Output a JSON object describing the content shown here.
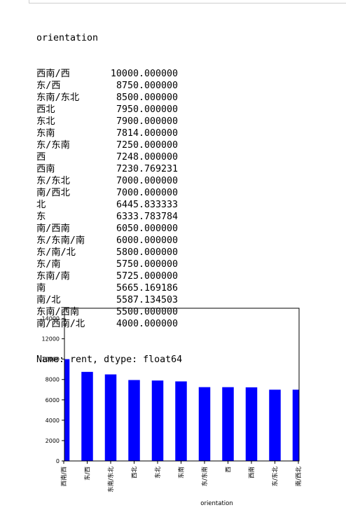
{
  "output": {
    "header": "orientation",
    "rows": [
      {
        "key": "西南/西",
        "value": "10000.000000"
      },
      {
        "key": "东/西",
        "value": "8750.000000"
      },
      {
        "key": "东南/东北",
        "value": "8500.000000"
      },
      {
        "key": "西北",
        "value": "7950.000000"
      },
      {
        "key": "东北",
        "value": "7900.000000"
      },
      {
        "key": "东南",
        "value": "7814.000000"
      },
      {
        "key": "东/东南",
        "value": "7250.000000"
      },
      {
        "key": "西",
        "value": "7248.000000"
      },
      {
        "key": "西南",
        "value": "7230.769231"
      },
      {
        "key": "东/东北",
        "value": "7000.000000"
      },
      {
        "key": "南/西北",
        "value": "7000.000000"
      },
      {
        "key": "北",
        "value": "6445.833333"
      },
      {
        "key": "东",
        "value": "6333.783784"
      },
      {
        "key": "南/西南",
        "value": "6050.000000"
      },
      {
        "key": "东/东南/南",
        "value": "6000.000000"
      },
      {
        "key": "东/南/北",
        "value": "5800.000000"
      },
      {
        "key": "东/南",
        "value": "5750.000000"
      },
      {
        "key": "东南/南",
        "value": "5725.000000"
      },
      {
        "key": "南",
        "value": "5665.169186"
      },
      {
        "key": "南/北",
        "value": "5587.134503"
      },
      {
        "key": "东南/西南",
        "value": "5500.000000"
      },
      {
        "key": "南/西南/北",
        "value": "4000.000000"
      }
    ],
    "footer": "Name: rent, dtype: float64"
  },
  "chart_data": {
    "type": "bar",
    "categories": [
      "西南/西",
      "东/西",
      "东南/东北",
      "西北",
      "东北",
      "东南",
      "东/东南",
      "西",
      "西南",
      "东/东北",
      "南/西北"
    ],
    "values": [
      10000,
      8750,
      8500,
      7950,
      7900,
      7814,
      7250,
      7248,
      7230.769231,
      7000,
      7000
    ],
    "xlabel": "orientation",
    "ylabel": "",
    "ylim": [
      0,
      15000
    ],
    "yticks": [
      "0",
      "2000",
      "4000",
      "6000",
      "8000",
      "10000",
      "12000",
      "14000"
    ],
    "bar_color": "#0000ff",
    "grid": false
  }
}
